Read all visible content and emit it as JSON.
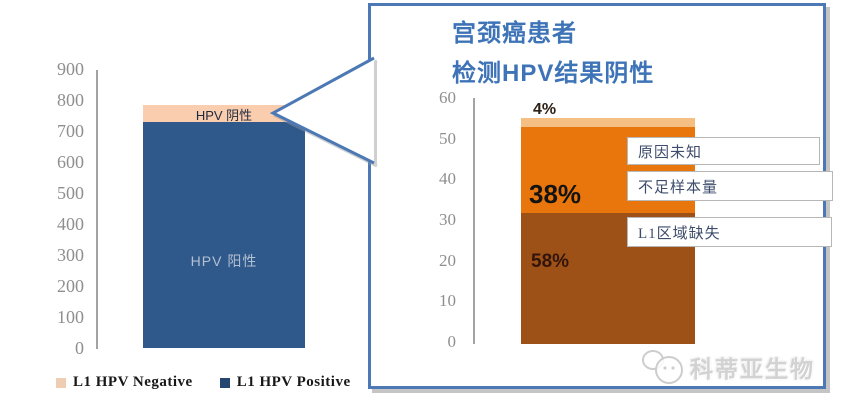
{
  "callout": {
    "title_line1": "宫颈癌患者",
    "title_line2": "检测HPV结果阴性",
    "border_color": "#4c79b6"
  },
  "watermark": {
    "text": "科蒂亚生物",
    "logo": "speech-bubbles-logo"
  },
  "chart_data": [
    {
      "type": "bar",
      "stacked": true,
      "categories": [
        ""
      ],
      "series": [
        {
          "name": "L1 HPV Positive",
          "color": "#30598b",
          "legend_color": "#24466f",
          "values": [
            730
          ],
          "bar_label": "HPV 阳性"
        },
        {
          "name": "L1 HPV Negative",
          "color": "#f9cdae",
          "legend_color": "#efcdb3",
          "values": [
            55
          ],
          "bar_label": "HPV 阴性"
        }
      ],
      "ylim": [
        0,
        900
      ],
      "yticks": [
        0,
        100,
        200,
        300,
        400,
        500,
        600,
        700,
        800,
        900
      ],
      "grid": false,
      "legend_position": "bottom"
    },
    {
      "type": "bar",
      "stacked": true,
      "title": "宫颈癌患者 检测HPV结果阴性",
      "categories": [
        ""
      ],
      "series": [
        {
          "name": "L1区域缺失",
          "color": "#9e5117",
          "values": [
            32.2
          ],
          "label": "58%"
        },
        {
          "name": "不足样本量",
          "color": "#e8760d",
          "values": [
            21.1
          ],
          "label": "38%"
        },
        {
          "name": "原因未知",
          "color": "#f5be83",
          "values": [
            2.2
          ],
          "label": "4%"
        }
      ],
      "ylim": [
        0,
        60
      ],
      "yticks": [
        0,
        10,
        20,
        30,
        40,
        50,
        60
      ],
      "grid": false,
      "legend_position": "none"
    }
  ]
}
